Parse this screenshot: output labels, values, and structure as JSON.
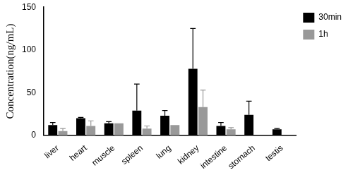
{
  "chart_data": {
    "type": "bar",
    "y_label": "Concentration(ng/mL)",
    "categories": [
      "liver",
      "heart",
      "muscle",
      "spleen",
      "lung",
      "kidney",
      "intestine",
      "stomach",
      "testis"
    ],
    "series": [
      {
        "name": "30min",
        "color": "#000000",
        "values": [
          12,
          20,
          14,
          29,
          23,
          78,
          11,
          24,
          7
        ],
        "errors": [
          3,
          1,
          2,
          31,
          6,
          47,
          4,
          16,
          1
        ]
      },
      {
        "name": "1h",
        "color": "#999999",
        "values": [
          5,
          11,
          14,
          8,
          12,
          33,
          7,
          null,
          null
        ],
        "errors": [
          3,
          6,
          0,
          3,
          0,
          20,
          2,
          null,
          null
        ]
      }
    ],
    "ylim": [
      0,
      150
    ],
    "yticks": [
      0,
      50,
      100,
      150
    ],
    "grid": false,
    "legend": "upper right"
  }
}
